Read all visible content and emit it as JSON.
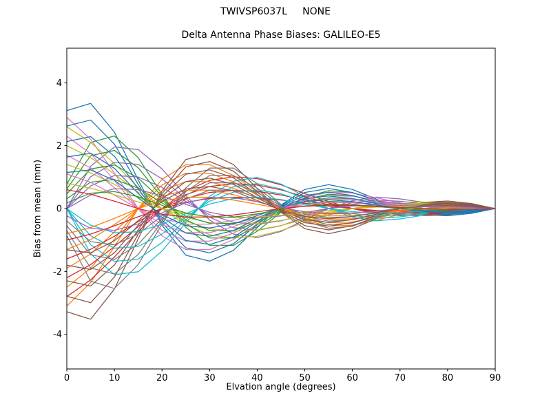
{
  "figure": {
    "suptitle": "TWIVSP6037L     NONE",
    "title": "Delta Antenna Phase Biases: GALILEO-E5",
    "xlabel": "Elvation angle (degrees)",
    "ylabel": "Bias from mean (mm)"
  },
  "chart_data": {
    "type": "line",
    "suptitle": "TWIVSP6037L     NONE",
    "title": "Delta Antenna Phase Biases: GALILEO-E5",
    "xlabel": "Elvation angle (degrees)",
    "ylabel": "Bias from mean (mm)",
    "xlim": [
      0,
      90
    ],
    "ylim": [
      -5.1,
      5.1
    ],
    "xticks": [
      0,
      10,
      20,
      30,
      40,
      50,
      60,
      70,
      80,
      90
    ],
    "yticks": [
      -4,
      -2,
      0,
      2,
      4
    ],
    "grid": false,
    "legend": "none",
    "x": [
      0,
      5,
      10,
      15,
      20,
      25,
      30,
      35,
      40,
      45,
      50,
      55,
      60,
      65,
      70,
      75,
      80,
      85,
      90
    ],
    "model": "Each unlabeled curve is a damped oscillation converging to 0 mm at 90 deg; series y-values = amplitude * templates[template][i] at each x",
    "templates": {
      "S1": [
        0.82,
        0.88,
        0.64,
        0.24,
        -0.14,
        -0.39,
        -0.44,
        -0.35,
        -0.16,
        0.03,
        0.16,
        0.2,
        0.16,
        0.08,
        0.0,
        -0.05,
        -0.06,
        -0.04,
        0.0
      ],
      "S2": [
        1.0,
        0.76,
        0.39,
        0.0,
        -0.3,
        -0.45,
        -0.45,
        -0.34,
        -0.17,
        0.0,
        0.12,
        0.18,
        0.17,
        0.12,
        0.06,
        0.0,
        -0.03,
        -0.04,
        0.0
      ],
      "S3": [
        0.26,
        0.7,
        0.77,
        0.54,
        0.15,
        -0.2,
        -0.39,
        -0.39,
        -0.24,
        -0.04,
        0.12,
        0.19,
        0.17,
        0.09,
        0.0,
        -0.06,
        -0.06,
        -0.04,
        0.0
      ],
      "S4": [
        1.0,
        0.81,
        0.55,
        0.26,
        0.0,
        -0.2,
        -0.32,
        -0.36,
        -0.34,
        -0.27,
        -0.17,
        -0.08,
        0.0,
        0.06,
        0.08,
        0.08,
        0.07,
        0.04,
        0.0
      ],
      "S5": [
        0.0,
        0.48,
        0.7,
        0.67,
        0.45,
        0.15,
        -0.13,
        -0.29,
        -0.33,
        -0.26,
        -0.13,
        0.0,
        0.09,
        0.13,
        0.11,
        0.07,
        0.02,
        -0.01,
        0.0
      ]
    },
    "series": [
      {
        "template": "S1",
        "amplitude": 3.8
      },
      {
        "template": "S2",
        "amplitude": -3.1
      },
      {
        "template": "S3",
        "amplitude": 3.0
      },
      {
        "template": "S4",
        "amplitude": -2.8
      },
      {
        "template": "S5",
        "amplitude": 2.8
      },
      {
        "template": "S1",
        "amplitude": -4.0
      },
      {
        "template": "S2",
        "amplitude": 2.9
      },
      {
        "template": "S3",
        "amplitude": -3.3
      },
      {
        "template": "S4",
        "amplitude": 2.6
      },
      {
        "template": "S5",
        "amplitude": -3.0
      },
      {
        "template": "S1",
        "amplitude": 3.2
      },
      {
        "template": "S2",
        "amplitude": -2.5
      },
      {
        "template": "S3",
        "amplitude": 2.4
      },
      {
        "template": "S4",
        "amplitude": -2.2
      },
      {
        "template": "S5",
        "amplitude": 2.1
      },
      {
        "template": "S1",
        "amplitude": -3.4
      },
      {
        "template": "S2",
        "amplitude": 2.3
      },
      {
        "template": "S3",
        "amplitude": -2.7
      },
      {
        "template": "S4",
        "amplitude": 2.0
      },
      {
        "template": "S5",
        "amplitude": -2.4
      },
      {
        "template": "S1",
        "amplitude": 2.6
      },
      {
        "template": "S2",
        "amplitude": -1.9
      },
      {
        "template": "S3",
        "amplitude": 1.8
      },
      {
        "template": "S4",
        "amplitude": -1.6
      },
      {
        "template": "S5",
        "amplitude": 1.5
      },
      {
        "template": "S1",
        "amplitude": -2.8
      },
      {
        "template": "S2",
        "amplitude": 1.7
      },
      {
        "template": "S3",
        "amplitude": -2.1
      },
      {
        "template": "S4",
        "amplitude": 1.4
      },
      {
        "template": "S5",
        "amplitude": -1.8
      },
      {
        "template": "S1",
        "amplitude": 2.0
      },
      {
        "template": "S2",
        "amplitude": -1.3
      },
      {
        "template": "S3",
        "amplitude": 1.2
      },
      {
        "template": "S4",
        "amplitude": -1.0
      },
      {
        "template": "S5",
        "amplitude": 0.9
      },
      {
        "template": "S1",
        "amplitude": -2.2
      },
      {
        "template": "S2",
        "amplitude": 1.1
      },
      {
        "template": "S3",
        "amplitude": -1.5
      },
      {
        "template": "S4",
        "amplitude": 0.8
      },
      {
        "template": "S5",
        "amplitude": -1.1
      },
      {
        "template": "S1",
        "amplitude": 1.4
      },
      {
        "template": "S2",
        "amplitude": -0.8
      },
      {
        "template": "S3",
        "amplitude": 0.7
      },
      {
        "template": "S2",
        "amplitude": 0.6
      },
      {
        "template": "S3",
        "amplitude": -0.9
      },
      {
        "template": "S1",
        "amplitude": -1.6
      }
    ],
    "palette": [
      "#1f77b4",
      "#ff7f0e",
      "#2ca02c",
      "#d62728",
      "#9467bd",
      "#8c564b",
      "#e377c2",
      "#7f7f7f",
      "#bcbd22",
      "#17becf"
    ]
  }
}
